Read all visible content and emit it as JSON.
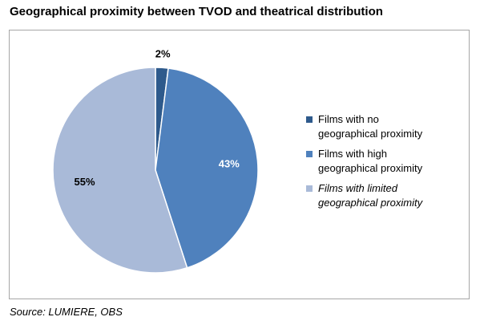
{
  "title": "Geographical proximity between TVOD and theatrical distribution",
  "source": "Source: LUMIERE, OBS",
  "chart_data": {
    "type": "pie",
    "title": "Geographical proximity between TVOD and theatrical distribution",
    "start_angle_deg": 0,
    "direction": "clockwise",
    "legend_position": "right",
    "slices": [
      {
        "name": "Films with no geographical proximity",
        "legend_lines": [
          "Films with no",
          "geographical proximity"
        ],
        "value": 2,
        "label": "2%",
        "color": "#2e5a8c",
        "label_color": "#000000",
        "italic": false
      },
      {
        "name": "Films with high geographical proximity",
        "legend_lines": [
          "Films with high",
          "geographical proximity"
        ],
        "value": 43,
        "label": "43%",
        "color": "#4f81bd",
        "label_color": "#ffffff",
        "italic": false
      },
      {
        "name": "Films with limited geographical proximity",
        "legend_lines": [
          "Films with limited",
          "geographical proximity"
        ],
        "value": 55,
        "label": "55%",
        "color": "#a9bad8",
        "label_color": "#000000",
        "italic": true
      }
    ]
  }
}
